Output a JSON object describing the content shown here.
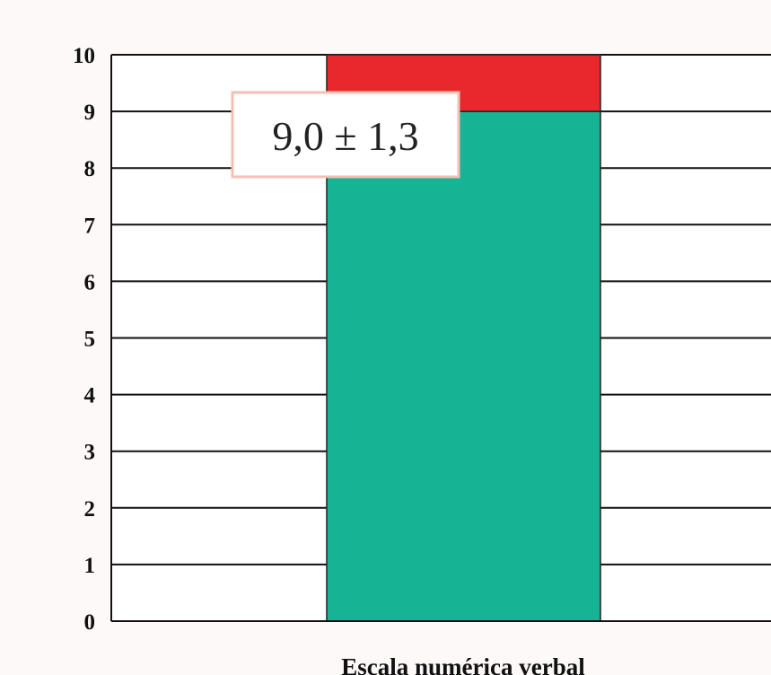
{
  "chart_data": {
    "type": "bar",
    "categories": [
      "Escala numérica verbal"
    ],
    "series": [
      {
        "values": [
          9.0
        ],
        "color": "#16b495"
      },
      {
        "values": [
          1.0
        ],
        "color": "#e8282c"
      }
    ],
    "annotation": "9,0 ± 1,3",
    "xlabel": "Escala numérica verbal",
    "ylabel": "",
    "ylim": [
      0,
      10
    ],
    "yticks": [
      0,
      1,
      2,
      3,
      4,
      5,
      6,
      7,
      8,
      9,
      10
    ],
    "grid": true,
    "stacked": true
  }
}
